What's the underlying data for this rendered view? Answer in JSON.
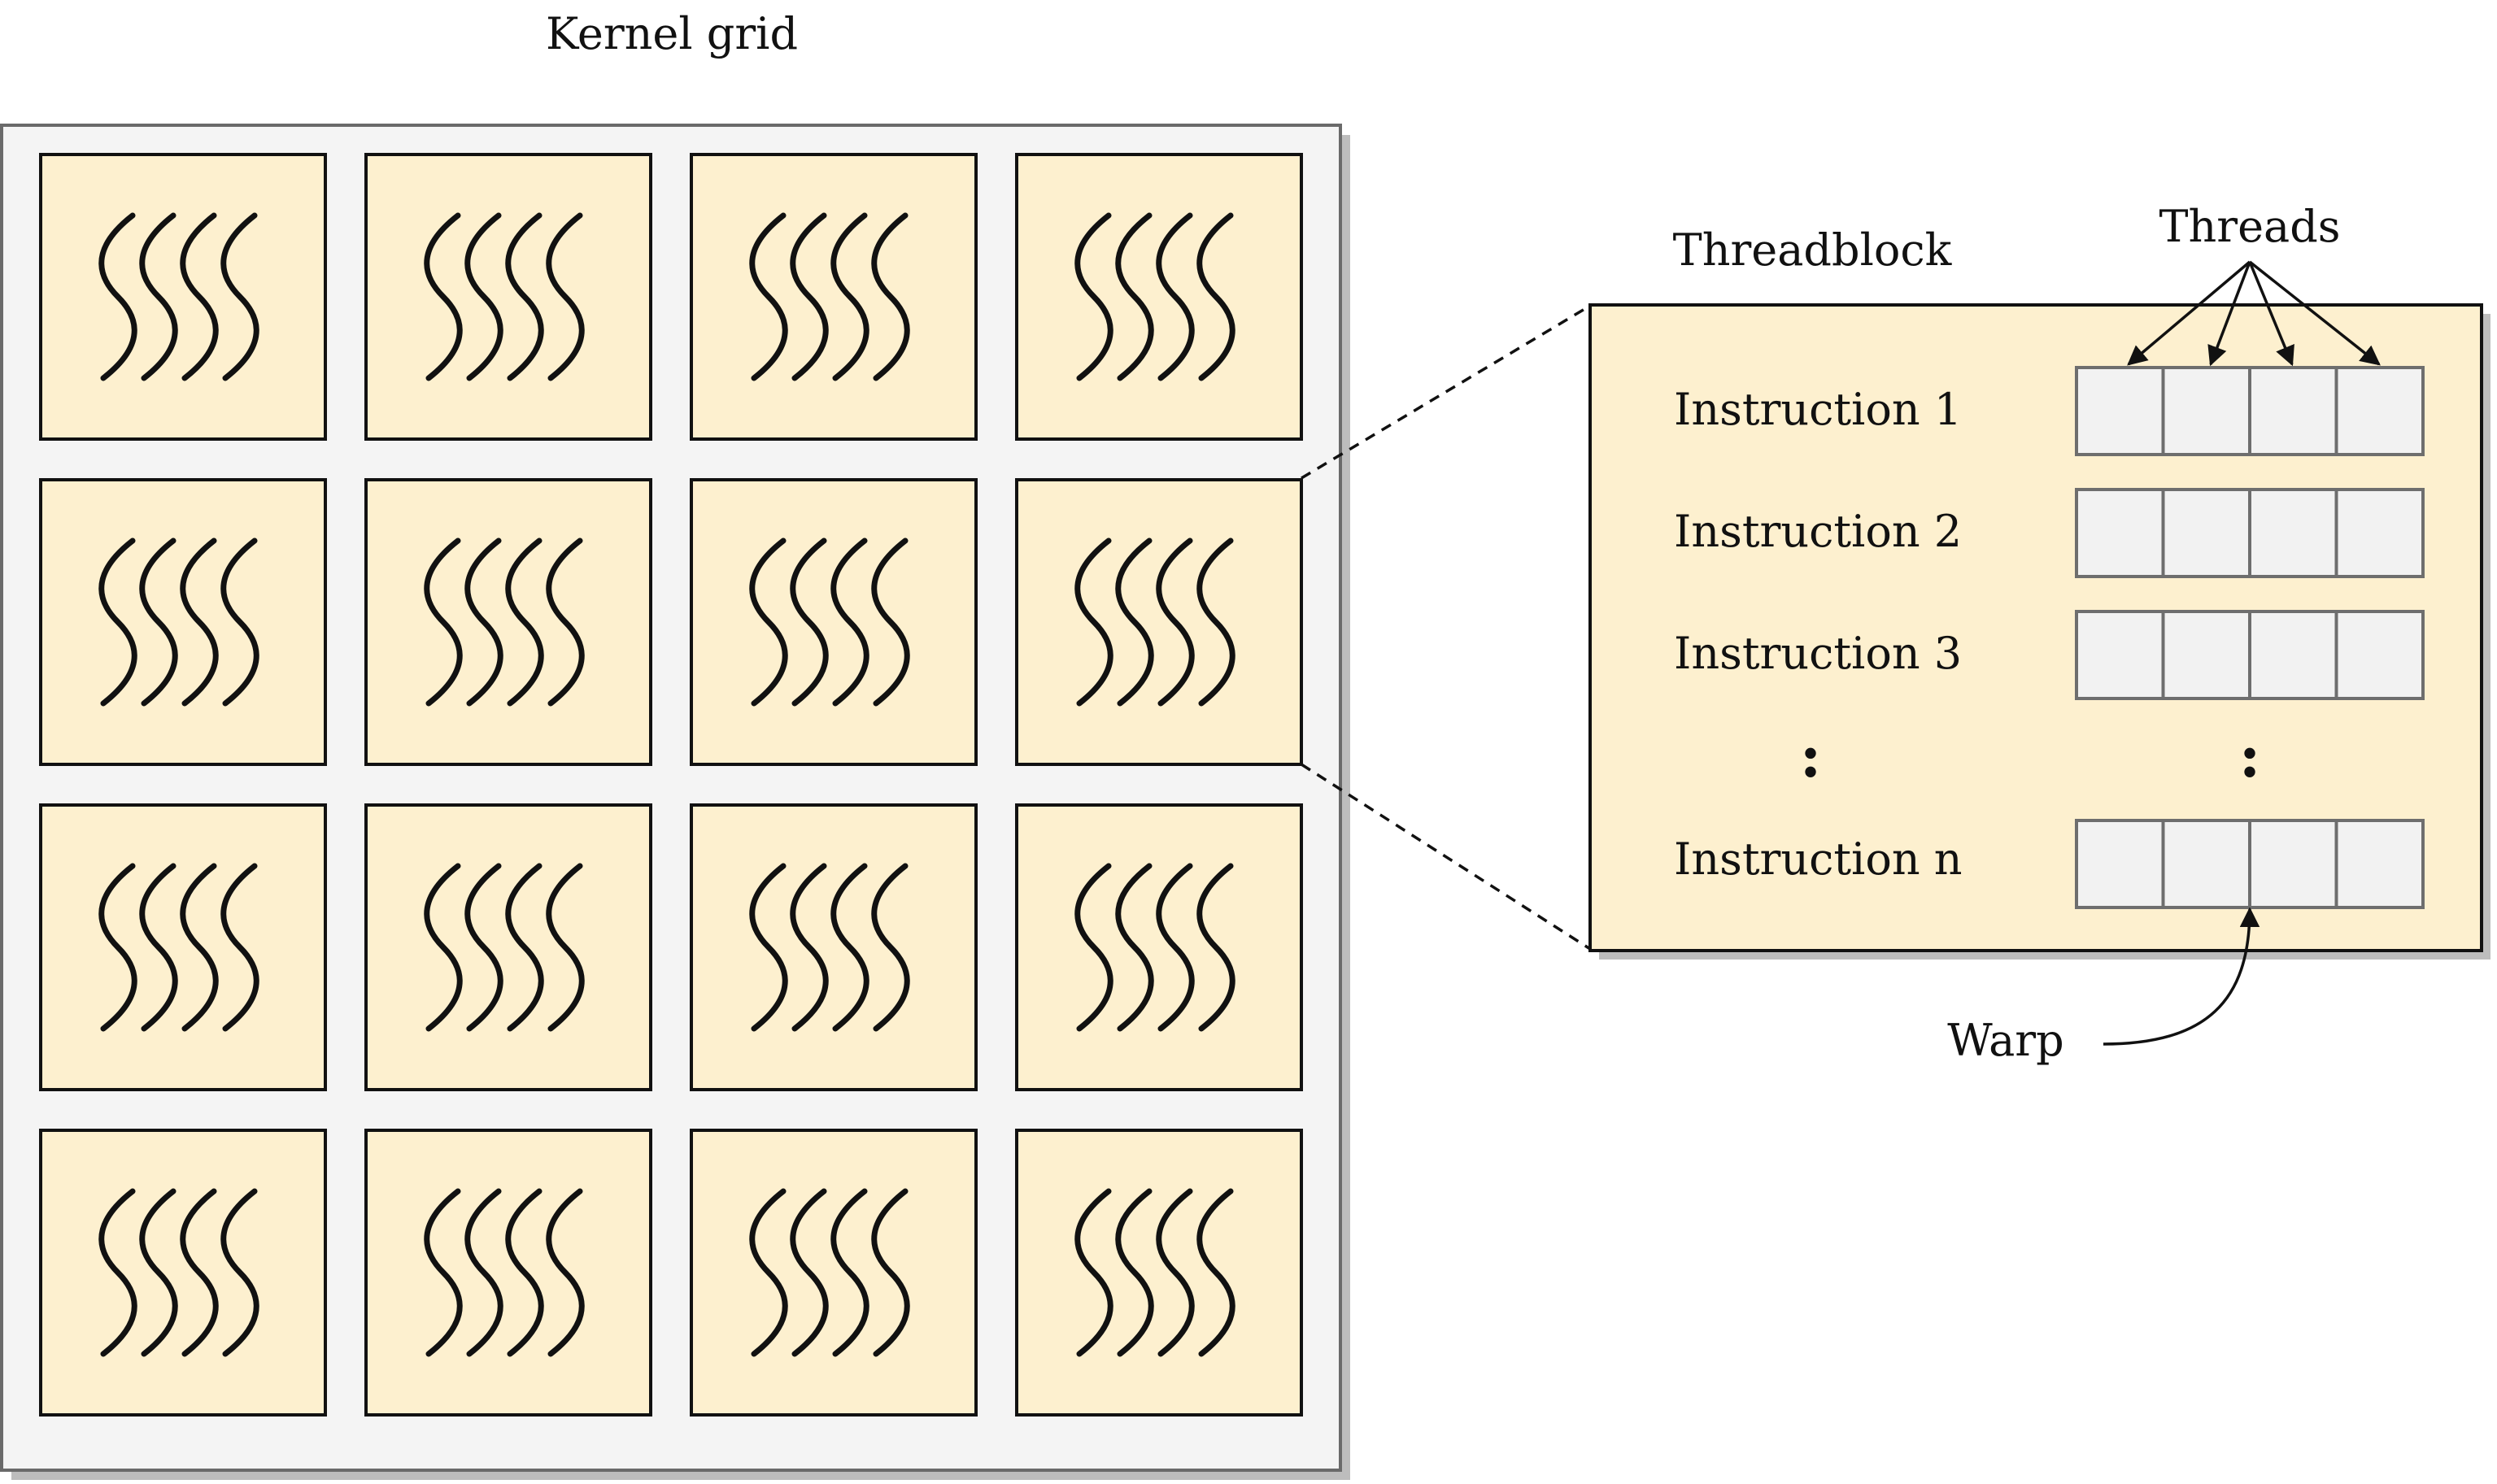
{
  "kernel_grid": {
    "title": "Kernel grid",
    "rows": 4,
    "columns": 4
  },
  "threadblock": {
    "title": "Threadblock",
    "threads_label": "Threads",
    "warp_label": "Warp",
    "ellipsis": ":",
    "threads_per_warp": 4,
    "instructions": [
      {
        "label": "Instruction 1"
      },
      {
        "label": "Instruction 2"
      },
      {
        "label": "Instruction 3"
      },
      {
        "label": "Instruction n"
      }
    ]
  },
  "colors": {
    "block_fill": "#fdf0cf",
    "grid_fill": "#f4f4f4",
    "cell_fill": "#f2f2f2",
    "cell_stroke": "#6e6e6e",
    "shadow": "#bdbdbd",
    "stroke": "#111111"
  },
  "icons": {
    "block_icon": "wavy-threads-icon"
  }
}
